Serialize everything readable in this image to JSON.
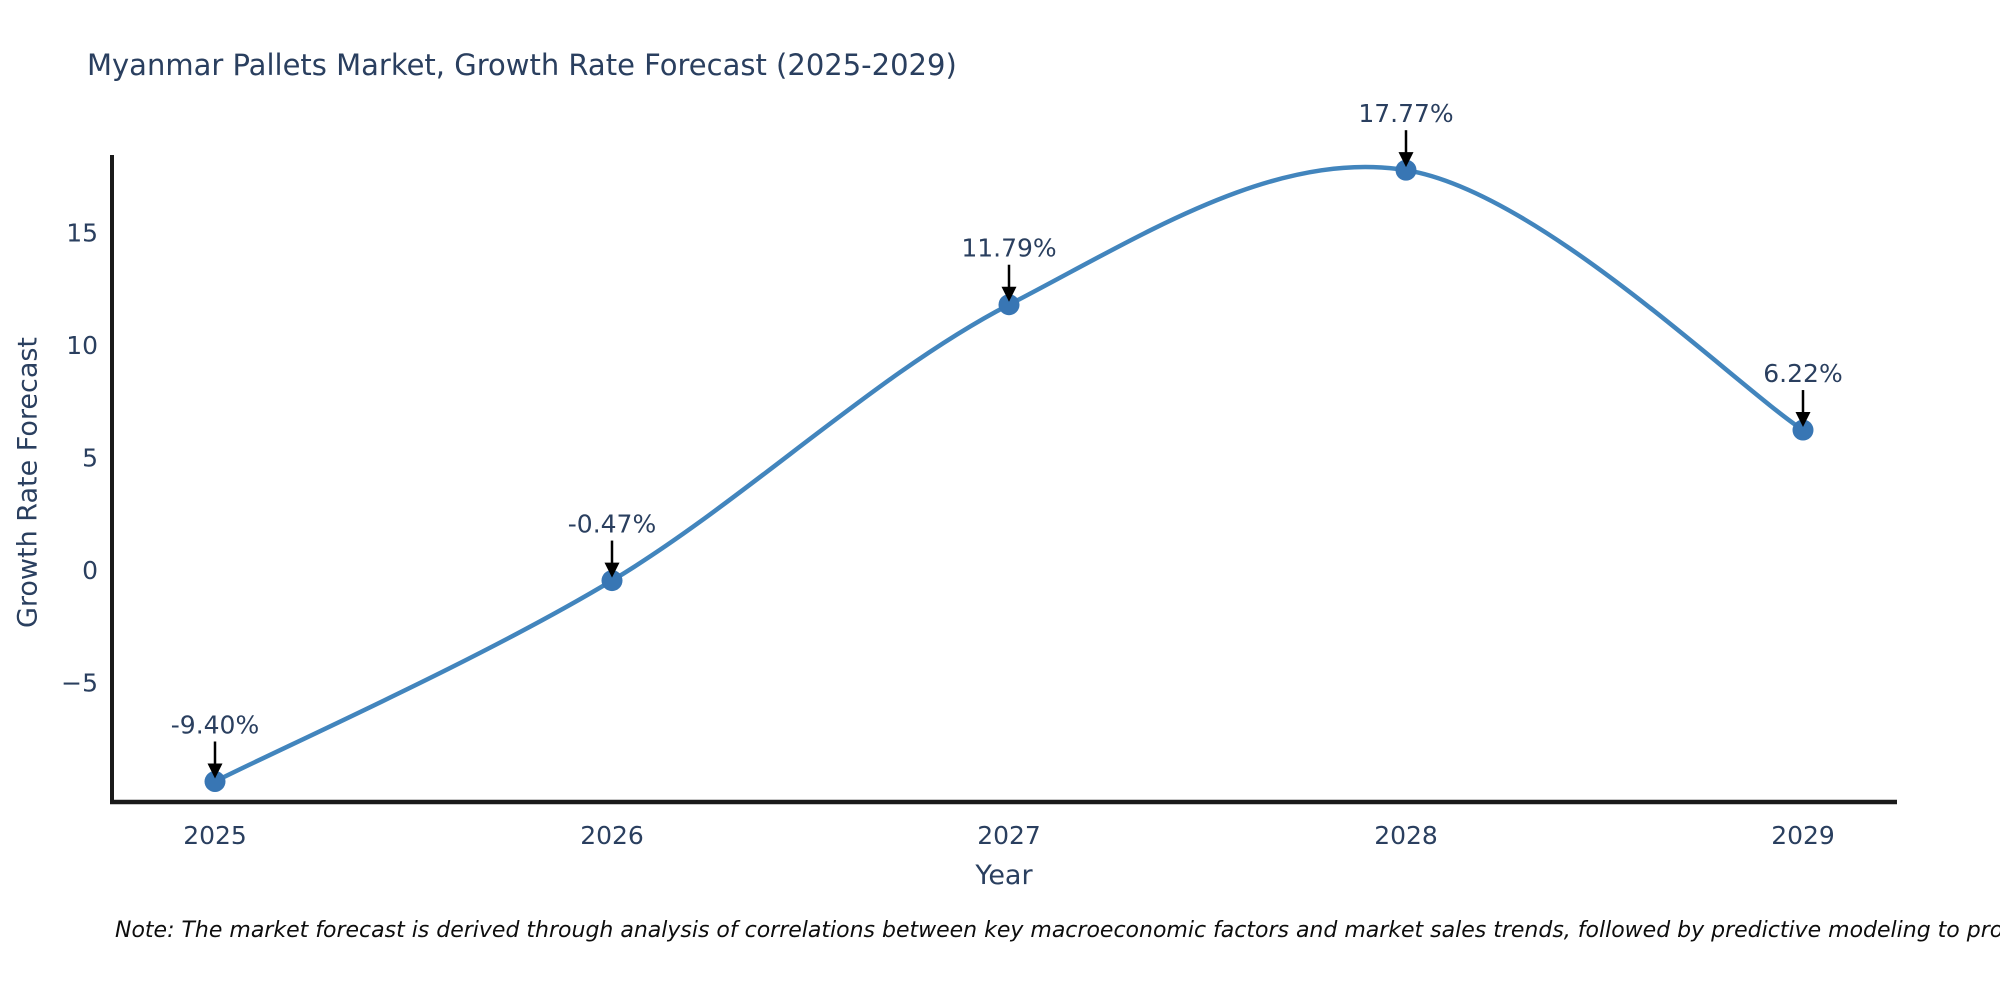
{
  "title": "Myanmar Pallets Market, Growth Rate Forecast (2025-2029)",
  "note": "Note: The market forecast is derived through analysis of correlations between key macroeconomic factors and market sales trends, followed by predictive modeling to project future sales",
  "chart_data": {
    "type": "line",
    "line_shape": "spline",
    "title": "Myanmar Pallets Market, Growth Rate Forecast (2025-2029)",
    "xlabel": "Year",
    "ylabel": "Growth Rate Forecast",
    "categories": [
      "2025",
      "2026",
      "2027",
      "2028",
      "2029"
    ],
    "values": [
      -9.4,
      -0.47,
      11.79,
      17.77,
      6.22
    ],
    "point_labels": [
      "-9.40%",
      "-0.47%",
      "11.79%",
      "17.77%",
      "6.22%"
    ],
    "yticks": {
      "values": [
        15,
        10,
        5,
        0,
        -5
      ],
      "labels": [
        "15",
        "10",
        "5",
        "0",
        "−5"
      ]
    },
    "ylim": [
      -10.8,
      18.7
    ],
    "grid": false,
    "legend": "none",
    "annotations_have_arrows": true,
    "colors": {
      "line": "#4285bd",
      "marker": "#3876b4",
      "axis_line": "#1a1a1a",
      "tick_text": "#2a3f5f",
      "title_text": "#2a3f5f",
      "annotation_text": "#2a3f5f",
      "annotation_arrow": "#000000",
      "note_text": "#0d0d0d",
      "background": "#ffffff"
    }
  }
}
